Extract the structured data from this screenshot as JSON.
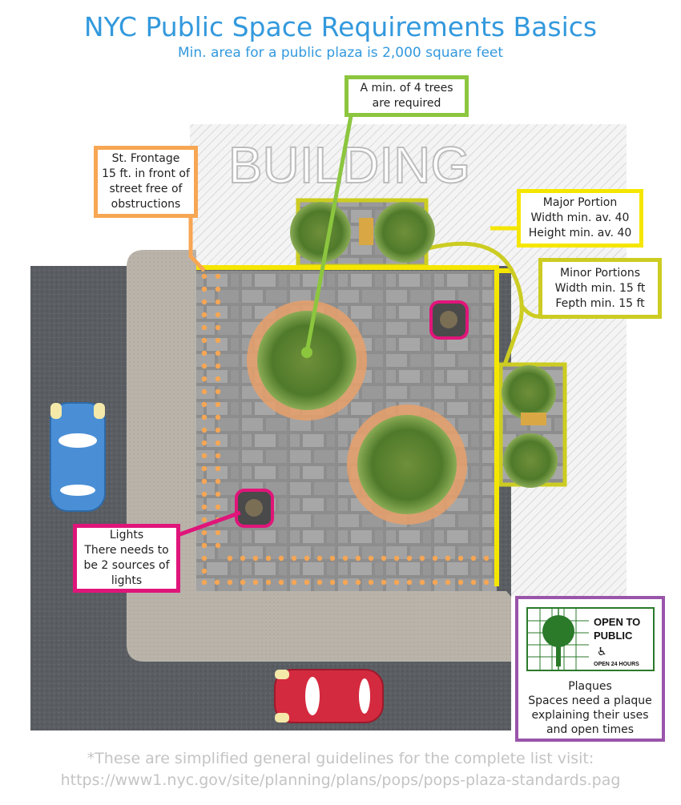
{
  "header": {
    "title": "NYC Public Space Requirements Basics",
    "subtitle": "Min. area for a public plaza is 2,000 square feet"
  },
  "building_label": "BUILDING",
  "callouts": {
    "trees": {
      "lines": [
        "A min. of 4 trees",
        "are required"
      ],
      "color": "#8cc63f"
    },
    "frontage": {
      "lines": [
        "St. Frontage",
        "15 ft. in front of",
        "street free of",
        "obstructions"
      ],
      "color": "#f7a654"
    },
    "major": {
      "lines": [
        "Major Portion",
        "Width min. av. 40",
        "Height min. av. 40"
      ],
      "color": "#f5e600"
    },
    "minor": {
      "lines": [
        "Minor Portions",
        "Width min. 15 ft",
        "Fepth min. 15 ft"
      ],
      "color": "#cccc22"
    },
    "lights": {
      "lines": [
        "Lights",
        "There needs to",
        "be 2 sources of",
        "lights"
      ],
      "color": "#e0157a"
    }
  },
  "plaque": {
    "sign_lines": [
      "OPEN TO",
      "PUBLIC"
    ],
    "sign_hours": "OPEN 24 HOURS",
    "lines": [
      "Plaques",
      "Spaces need a plaque",
      "explaining their uses",
      "and open times"
    ],
    "color": "#9955aa"
  },
  "footer": {
    "lines": [
      "*These are simplified general guidelines for the complete list visit:",
      "https://www1.nyc.gov/site/planning/plans/pops/pops-plaza-standards.pag"
    ]
  },
  "icons": [
    "tree-icon",
    "lamp-icon",
    "car-icon",
    "wheelchair-icon"
  ]
}
